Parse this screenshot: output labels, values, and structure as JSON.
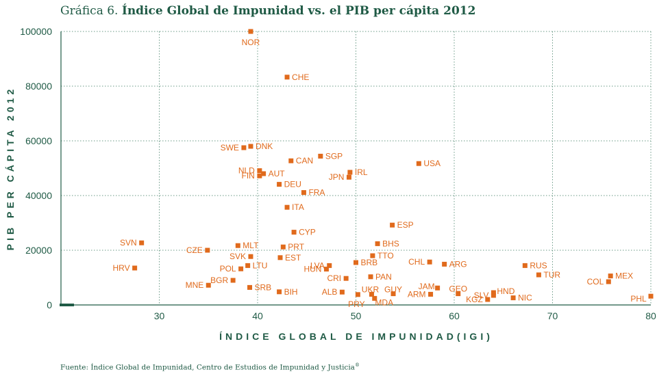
{
  "title": {
    "lead": "Gráfica 6.",
    "main": "Índice Global de Impunidad vs. el PIB per cápita 2012"
  },
  "source": {
    "text": "Fuente: Índice Global de Impunidad, Centro de Estudios de Impunidad y Justicia",
    "mark": "®"
  },
  "colors": {
    "marker": "#e06a1c",
    "label": "#e06a1c",
    "axis": "#1f5a45",
    "grid": "#6a9a86"
  },
  "chart_data": {
    "type": "scatter",
    "title": "Índice Global de Impunidad vs. el PIB per cápita 2012",
    "xlabel": "ÍNDICE GLOBAL DE IMPUNIDAD(IGI)",
    "ylabel": "PIB PER CÁPITA 2012",
    "xlim": [
      20,
      80
    ],
    "ylim": [
      0,
      100000
    ],
    "xticks": [
      30,
      40,
      50,
      60,
      70,
      80
    ],
    "yticks": [
      0,
      20000,
      40000,
      60000,
      80000,
      100000
    ],
    "ytick_labels": [
      "0",
      "20000",
      "40000",
      "60000",
      "80000",
      "100000"
    ],
    "grid": true,
    "points": [
      {
        "label": "NOR",
        "x": 39.3,
        "y": 100000
      },
      {
        "label": "CHE",
        "x": 43.0,
        "y": 83300
      },
      {
        "label": "SWE",
        "x": 38.6,
        "y": 57500
      },
      {
        "label": "DNK",
        "x": 39.3,
        "y": 58000
      },
      {
        "label": "CAN",
        "x": 43.4,
        "y": 52700
      },
      {
        "label": "SGP",
        "x": 46.4,
        "y": 54400
      },
      {
        "label": "USA",
        "x": 56.4,
        "y": 51700
      },
      {
        "label": "NLD",
        "x": 40.2,
        "y": 49100
      },
      {
        "label": "AUT",
        "x": 40.6,
        "y": 48000
      },
      {
        "label": "FIN",
        "x": 40.2,
        "y": 47200
      },
      {
        "label": "IRL",
        "x": 49.4,
        "y": 48500
      },
      {
        "label": "JPN",
        "x": 49.3,
        "y": 46700
      },
      {
        "label": "DEU",
        "x": 42.2,
        "y": 44100
      },
      {
        "label": "FRA",
        "x": 44.7,
        "y": 41100
      },
      {
        "label": "ITA",
        "x": 43.0,
        "y": 35700
      },
      {
        "label": "ESP",
        "x": 53.7,
        "y": 29200
      },
      {
        "label": "CYP",
        "x": 43.7,
        "y": 26600
      },
      {
        "label": "BHS",
        "x": 52.2,
        "y": 22400
      },
      {
        "label": "SVN",
        "x": 28.2,
        "y": 22700
      },
      {
        "label": "MLT",
        "x": 38.0,
        "y": 21700
      },
      {
        "label": "PRT",
        "x": 42.6,
        "y": 21200
      },
      {
        "label": "CZE",
        "x": 34.9,
        "y": 20000
      },
      {
        "label": "SVK",
        "x": 39.3,
        "y": 17700
      },
      {
        "label": "EST",
        "x": 42.3,
        "y": 17300
      },
      {
        "label": "TTO",
        "x": 51.7,
        "y": 18000
      },
      {
        "label": "LVA",
        "x": 47.3,
        "y": 14400
      },
      {
        "label": "BRB",
        "x": 50.0,
        "y": 15500
      },
      {
        "label": "CHL",
        "x": 57.5,
        "y": 15700
      },
      {
        "label": "ARG",
        "x": 59.0,
        "y": 14900
      },
      {
        "label": "RUS",
        "x": 67.2,
        "y": 14400
      },
      {
        "label": "LTU",
        "x": 39.0,
        "y": 14400
      },
      {
        "label": "POL",
        "x": 38.3,
        "y": 13200
      },
      {
        "label": "HUN",
        "x": 47.0,
        "y": 13100
      },
      {
        "label": "HRV",
        "x": 27.5,
        "y": 13500
      },
      {
        "label": "TUR",
        "x": 68.6,
        "y": 11000
      },
      {
        "label": "MEX",
        "x": 75.9,
        "y": 10600
      },
      {
        "label": "PAN",
        "x": 51.5,
        "y": 10300
      },
      {
        "label": "CRI",
        "x": 49.0,
        "y": 9700
      },
      {
        "label": "BGR",
        "x": 37.5,
        "y": 9000
      },
      {
        "label": "COL",
        "x": 75.7,
        "y": 8500
      },
      {
        "label": "MNE",
        "x": 35.0,
        "y": 7200
      },
      {
        "label": "SRB",
        "x": 39.2,
        "y": 6400
      },
      {
        "label": "JAM",
        "x": 58.3,
        "y": 6200
      },
      {
        "label": "GEO",
        "x": 60.4,
        "y": 4100
      },
      {
        "label": "HND",
        "x": 64.0,
        "y": 4500
      },
      {
        "label": "SLV",
        "x": 64.0,
        "y": 3500
      },
      {
        "label": "GUY",
        "x": 53.8,
        "y": 4100
      },
      {
        "label": "UKR",
        "x": 51.6,
        "y": 3900
      },
      {
        "label": "ALB",
        "x": 48.6,
        "y": 4700
      },
      {
        "label": "BIH",
        "x": 42.2,
        "y": 4800
      },
      {
        "label": "PRY",
        "x": 50.2,
        "y": 3800
      },
      {
        "label": "MDA",
        "x": 51.9,
        "y": 2400
      },
      {
        "label": "ARM",
        "x": 57.6,
        "y": 3900
      },
      {
        "label": "KGZ",
        "x": 63.4,
        "y": 2000
      },
      {
        "label": "NIC",
        "x": 66.0,
        "y": 2600
      },
      {
        "label": "PHL",
        "x": 80.0,
        "y": 3200
      }
    ]
  }
}
